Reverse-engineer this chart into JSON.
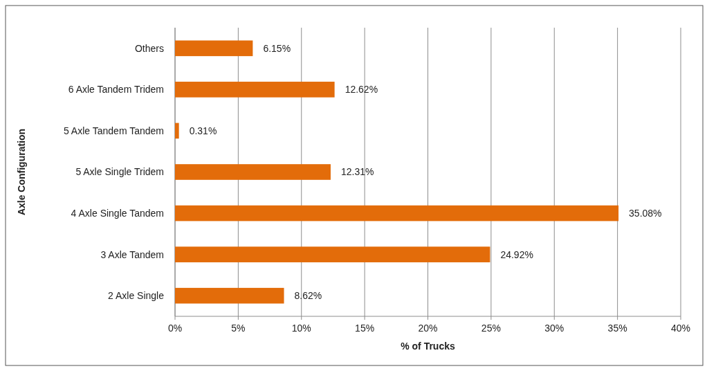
{
  "chart_data": {
    "type": "bar",
    "orientation": "horizontal",
    "xlabel": "% of Trucks",
    "ylabel": "Axle Configuration",
    "categories": [
      "Others",
      "6 Axle Tandem Tridem",
      "5 Axle Tandem Tandem",
      "5 Axle Single Tridem",
      "4 Axle Single Tandem",
      "3 Axle Tandem",
      "2 Axle Single"
    ],
    "values": [
      6.15,
      12.62,
      0.31,
      12.31,
      35.08,
      24.92,
      8.62
    ],
    "value_labels": [
      "6.15%",
      "12.62%",
      "0.31%",
      "12.31%",
      "35.08%",
      "24.92%",
      "8.62%"
    ],
    "color": "#e36c0a",
    "xlim": [
      0,
      40
    ],
    "xticks": [
      {
        "value": 0,
        "label": "0%"
      },
      {
        "value": 5,
        "label": "5%"
      },
      {
        "value": 10,
        "label": "10%"
      },
      {
        "value": 15,
        "label": "15%"
      },
      {
        "value": 20,
        "label": "20%"
      },
      {
        "value": 25,
        "label": "25%"
      },
      {
        "value": 30,
        "label": "30%"
      },
      {
        "value": 35,
        "label": "35%"
      },
      {
        "value": 40,
        "label": "40%"
      }
    ],
    "grid": "x"
  }
}
